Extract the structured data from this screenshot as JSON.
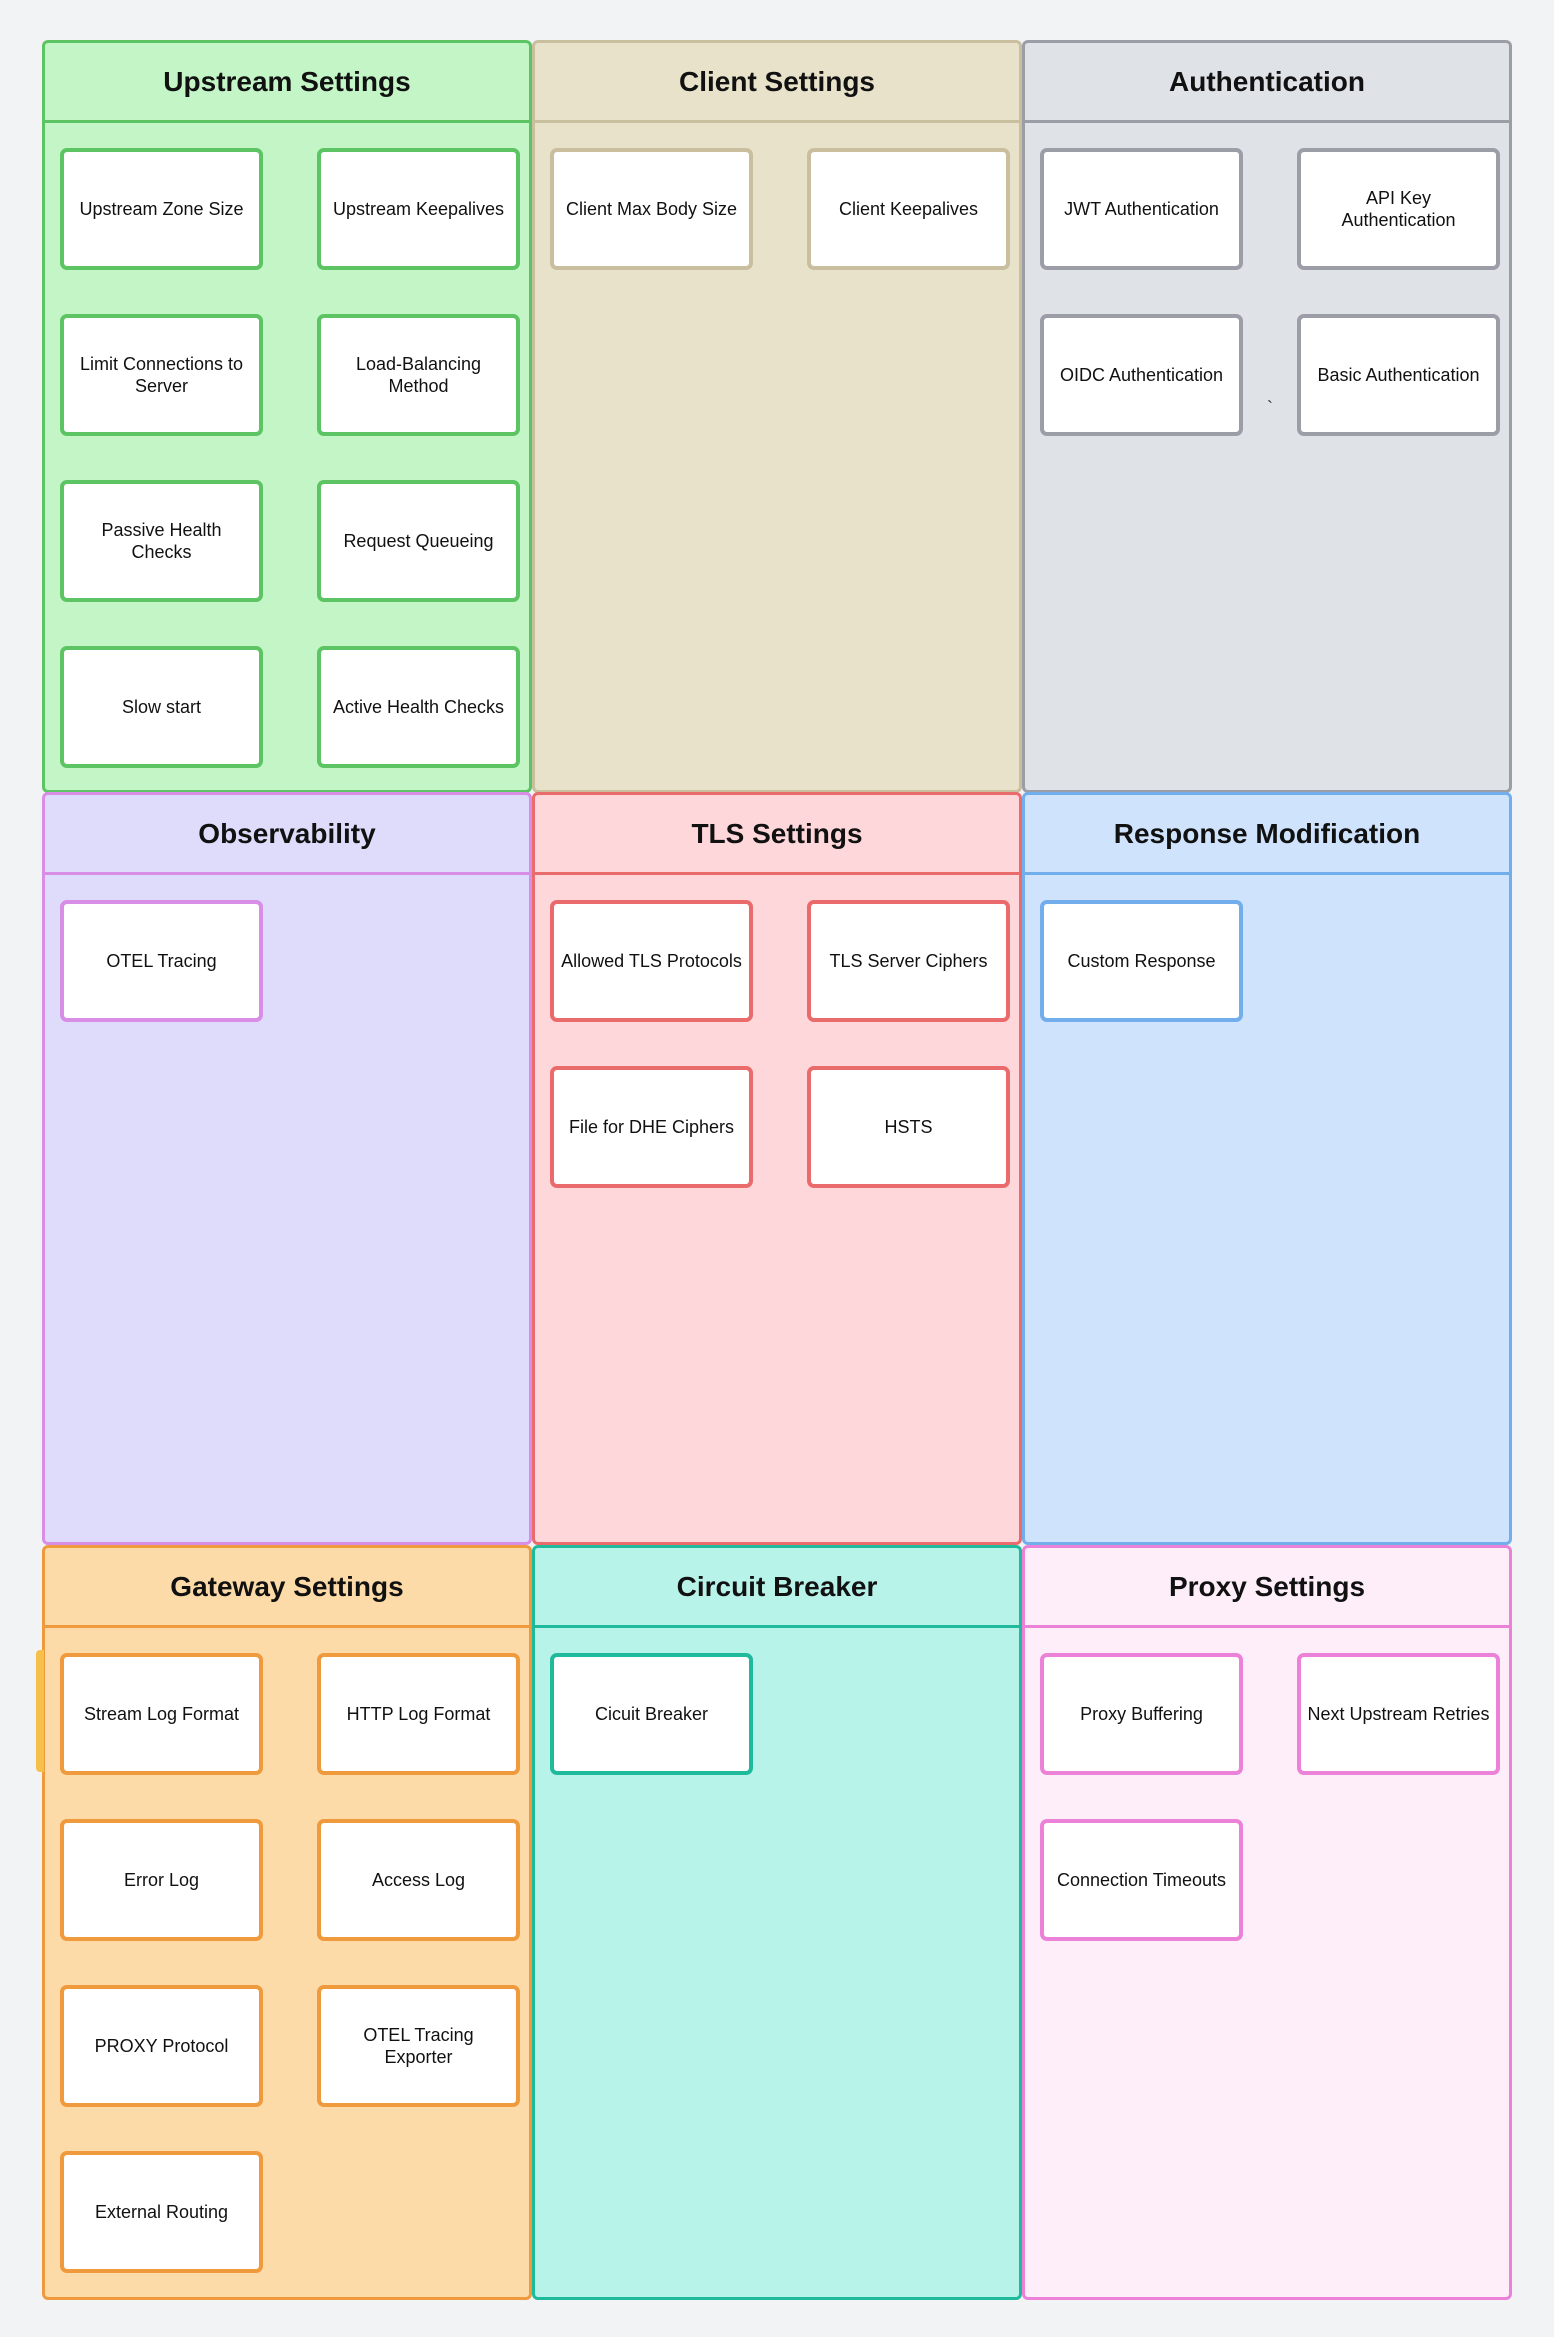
{
  "panels": [
    {
      "id": "upstream",
      "title": "Upstream Settings",
      "colors": {
        "fill": "#c3f5c6",
        "border": "#5dc463"
      },
      "items": [
        "Upstream Zone Size",
        "Upstream Keepalives",
        "Limit Connections to Server",
        "Load-Balancing Method",
        "Passive Health Checks",
        "Request Queueing",
        "Slow start",
        "Active Health Checks"
      ]
    },
    {
      "id": "client",
      "title": "Client Settings",
      "colors": {
        "fill": "#e8e2ca",
        "border": "#c9bf9f"
      },
      "items": [
        "Client Max Body Size",
        "Client Keepalives"
      ]
    },
    {
      "id": "auth",
      "title": "Authentication",
      "colors": {
        "fill": "#dfe2e7",
        "border": "#9b9ea6"
      },
      "items": [
        "JWT Authentication",
        "API Key Authentication",
        "OIDC Authentication",
        "Basic Authentication"
      ]
    },
    {
      "id": "observability",
      "title": "Observability",
      "colors": {
        "fill": "#dfdcfb",
        "border": "#d88de6"
      },
      "items": [
        "OTEL Tracing"
      ]
    },
    {
      "id": "tls",
      "title": "TLS Settings",
      "colors": {
        "fill": "#fed7da",
        "border": "#ea6b6c"
      },
      "items": [
        "Allowed TLS Protocols",
        "TLS Server Ciphers",
        "File for DHE Ciphers",
        "HSTS"
      ]
    },
    {
      "id": "response",
      "title": "Response Modification",
      "colors": {
        "fill": "#cfe3fd",
        "border": "#73aeec"
      },
      "items": [
        "Custom Response"
      ]
    },
    {
      "id": "gateway",
      "title": "Gateway Settings",
      "colors": {
        "fill": "#fddba8",
        "border": "#f09a3e"
      },
      "items": [
        "Stream Log Format",
        "HTTP Log Format",
        "Error Log",
        "Access Log",
        "PROXY Protocol",
        "OTEL Tracing Exporter",
        "External Routing"
      ]
    },
    {
      "id": "circuit",
      "title": "Circuit Breaker",
      "colors": {
        "fill": "#b8f3ea",
        "border": "#1fb99c"
      },
      "items": [
        "Cicuit Breaker"
      ]
    },
    {
      "id": "proxy",
      "title": "Proxy Settings",
      "colors": {
        "fill": "#fdeefa",
        "border": "#ec82d8"
      },
      "items": [
        "Proxy Buffering",
        "Next Upstream Retries",
        "Connection Timeouts"
      ]
    }
  ],
  "stray_mark": "`"
}
